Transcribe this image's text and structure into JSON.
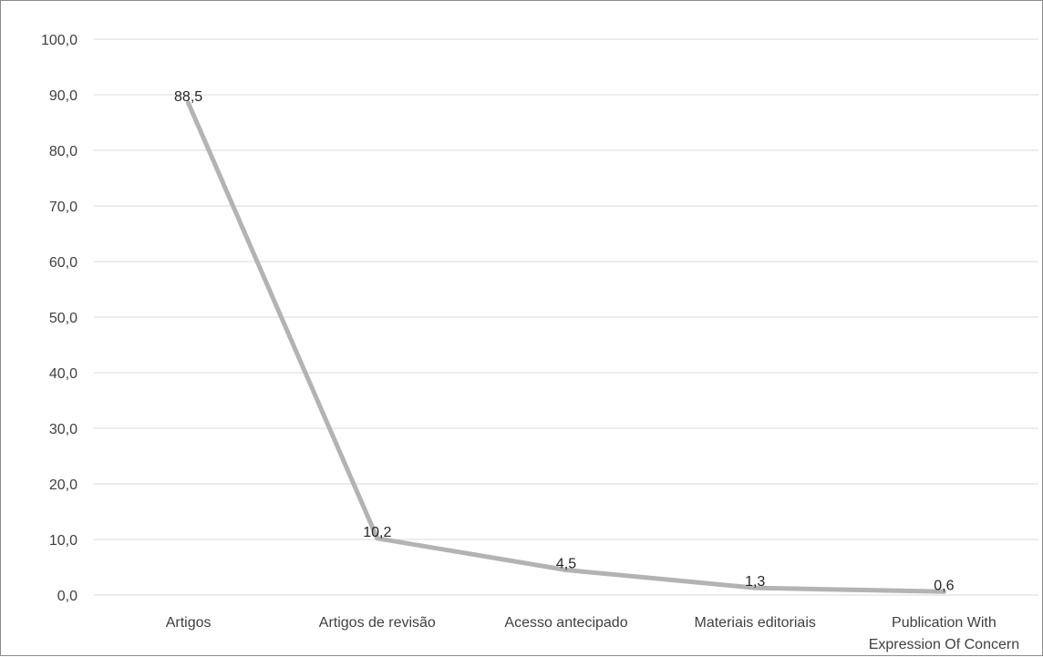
{
  "chart_data": {
    "type": "line",
    "title": "",
    "xlabel": "",
    "ylabel": "",
    "categories": [
      "Artigos",
      "Artigos de revisão",
      "Acesso antecipado",
      "Materiais editoriais",
      "Publication With Expression Of Concern"
    ],
    "category_lines": [
      [
        "Artigos"
      ],
      [
        "Artigos de revisão"
      ],
      [
        "Acesso antecipado"
      ],
      [
        "Materiais editoriais"
      ],
      [
        "Publication With",
        "Expression Of Concern"
      ]
    ],
    "series": [
      {
        "values": [
          88.5,
          10.2,
          4.5,
          1.3,
          0.6
        ],
        "labels": [
          "88,5",
          "10,2",
          "4,5",
          "1,3",
          "0,6"
        ],
        "color": "#b3b3b3"
      }
    ],
    "ylim": [
      0,
      100
    ],
    "yticks": [
      0,
      10,
      20,
      30,
      40,
      50,
      60,
      70,
      80,
      90,
      100
    ],
    "ytick_labels": [
      "0,0",
      "10,0",
      "20,0",
      "30,0",
      "40,0",
      "50,0",
      "60,0",
      "70,0",
      "80,0",
      "90,0",
      "100,0"
    ],
    "grid": true,
    "legend": "none"
  }
}
